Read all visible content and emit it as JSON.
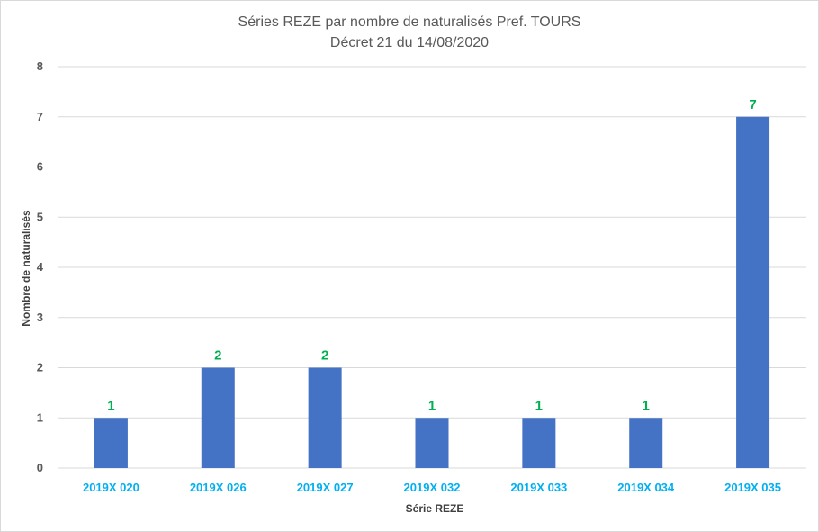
{
  "chart_data": {
    "type": "bar",
    "title": "Séries REZE par nombre de naturalisés Pref. TOURS",
    "subtitle": "Décret 21 du 14/08/2020",
    "xlabel": "Série REZE",
    "ylabel": "Nombre de naturalisés",
    "categories": [
      "2019X 020",
      "2019X 026",
      "2019X 027",
      "2019X 032",
      "2019X 033",
      "2019X 034",
      "2019X 035"
    ],
    "values": [
      1,
      2,
      2,
      1,
      1,
      1,
      7
    ],
    "ylim": [
      0,
      8
    ],
    "yticks": [
      "0",
      "1",
      "2",
      "3",
      "4",
      "5",
      "6",
      "7",
      "8"
    ],
    "grid": true,
    "legend": "none",
    "colors": {
      "bar": "#4472c4",
      "data_label": "#00b050",
      "category_label": "#00b0f0",
      "gridline": "#d9d9d9"
    }
  }
}
